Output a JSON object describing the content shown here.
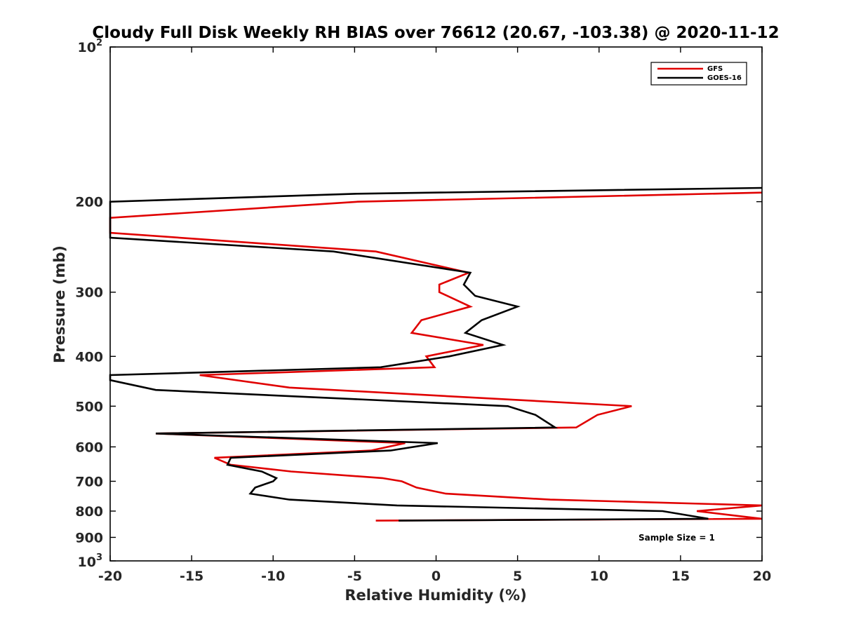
{
  "chart_data": {
    "type": "line",
    "title": "Cloudy Full Disk Weekly RH BIAS over 76612 (20.67, -103.38) @ 2020-11-12",
    "xlabel": "Relative Humidity (%)",
    "ylabel": "Pressure (mb)",
    "xlim": [
      -20,
      20
    ],
    "ylim": [
      100,
      1000
    ],
    "yscale": "log",
    "y_reversed": true,
    "xticks": [
      -20,
      -15,
      -10,
      -5,
      0,
      5,
      10,
      15,
      20
    ],
    "xtick_labels": [
      "-20",
      "-15",
      "-10",
      "-5",
      "0",
      "5",
      "10",
      "15",
      "20"
    ],
    "yticks": [
      200,
      300,
      400,
      500,
      600,
      700,
      800,
      900
    ],
    "ytick_labels": [
      "200",
      "300",
      "400",
      "500",
      "600",
      "700",
      "800",
      "900"
    ],
    "ylim_labels": {
      "top_base": "10",
      "top_exp": "2",
      "bottom_base": "10",
      "bottom_exp": "3"
    },
    "legend_position": "top-right",
    "annotation": "Sample Size = 1",
    "series": [
      {
        "name": "GFS",
        "color": "#e00000",
        "points": [
          [
            20,
            192
          ],
          [
            -4.8,
            200
          ],
          [
            -20,
            215
          ],
          [
            -20,
            230
          ],
          [
            -3.7,
            250
          ],
          [
            2,
            275
          ],
          [
            0.2,
            290
          ],
          [
            0.2,
            300
          ],
          [
            2.1,
            320
          ],
          [
            -0.9,
            340
          ],
          [
            -1.5,
            360
          ],
          [
            2.9,
            380
          ],
          [
            -0.6,
            400
          ],
          [
            -0.1,
            420
          ],
          [
            -14.5,
            435
          ],
          [
            -9,
            460
          ],
          [
            12,
            500
          ],
          [
            9.9,
            520
          ],
          [
            8.6,
            550
          ],
          [
            -17.2,
            565
          ],
          [
            -1.9,
            590
          ],
          [
            -4,
            610
          ],
          [
            -13.6,
            630
          ],
          [
            -12.6,
            650
          ],
          [
            -8.9,
            670
          ],
          [
            -3.3,
            690
          ],
          [
            -2.1,
            700
          ],
          [
            -1.2,
            720
          ],
          [
            0.6,
            740
          ],
          [
            7,
            760
          ],
          [
            20,
            780
          ],
          [
            16,
            800
          ],
          [
            20,
            828
          ],
          [
            -3.7,
            835
          ]
        ]
      },
      {
        "name": "GOES-16",
        "color": "#000000",
        "points": [
          [
            20,
            188
          ],
          [
            -4.8,
            193
          ],
          [
            -20,
            200
          ],
          [
            -20,
            235
          ],
          [
            -6.3,
            250
          ],
          [
            2.1,
            275
          ],
          [
            1.7,
            290
          ],
          [
            2.4,
            305
          ],
          [
            5,
            320
          ],
          [
            2.8,
            340
          ],
          [
            1.8,
            360
          ],
          [
            4.1,
            380
          ],
          [
            0.8,
            400
          ],
          [
            -3.4,
            420
          ],
          [
            -20,
            435
          ],
          [
            -20,
            445
          ],
          [
            -17.2,
            465
          ],
          [
            4.4,
            500
          ],
          [
            6.1,
            520
          ],
          [
            7.3,
            550
          ],
          [
            -17.2,
            565
          ],
          [
            0.1,
            590
          ],
          [
            -2.8,
            610
          ],
          [
            -12.6,
            630
          ],
          [
            -12.8,
            650
          ],
          [
            -10.7,
            670
          ],
          [
            -9.8,
            690
          ],
          [
            -10,
            700
          ],
          [
            -11.1,
            720
          ],
          [
            -11.4,
            740
          ],
          [
            -9,
            760
          ],
          [
            -2.4,
            780
          ],
          [
            13.9,
            800
          ],
          [
            16.7,
            828
          ],
          [
            -2.3,
            835
          ]
        ]
      }
    ]
  }
}
